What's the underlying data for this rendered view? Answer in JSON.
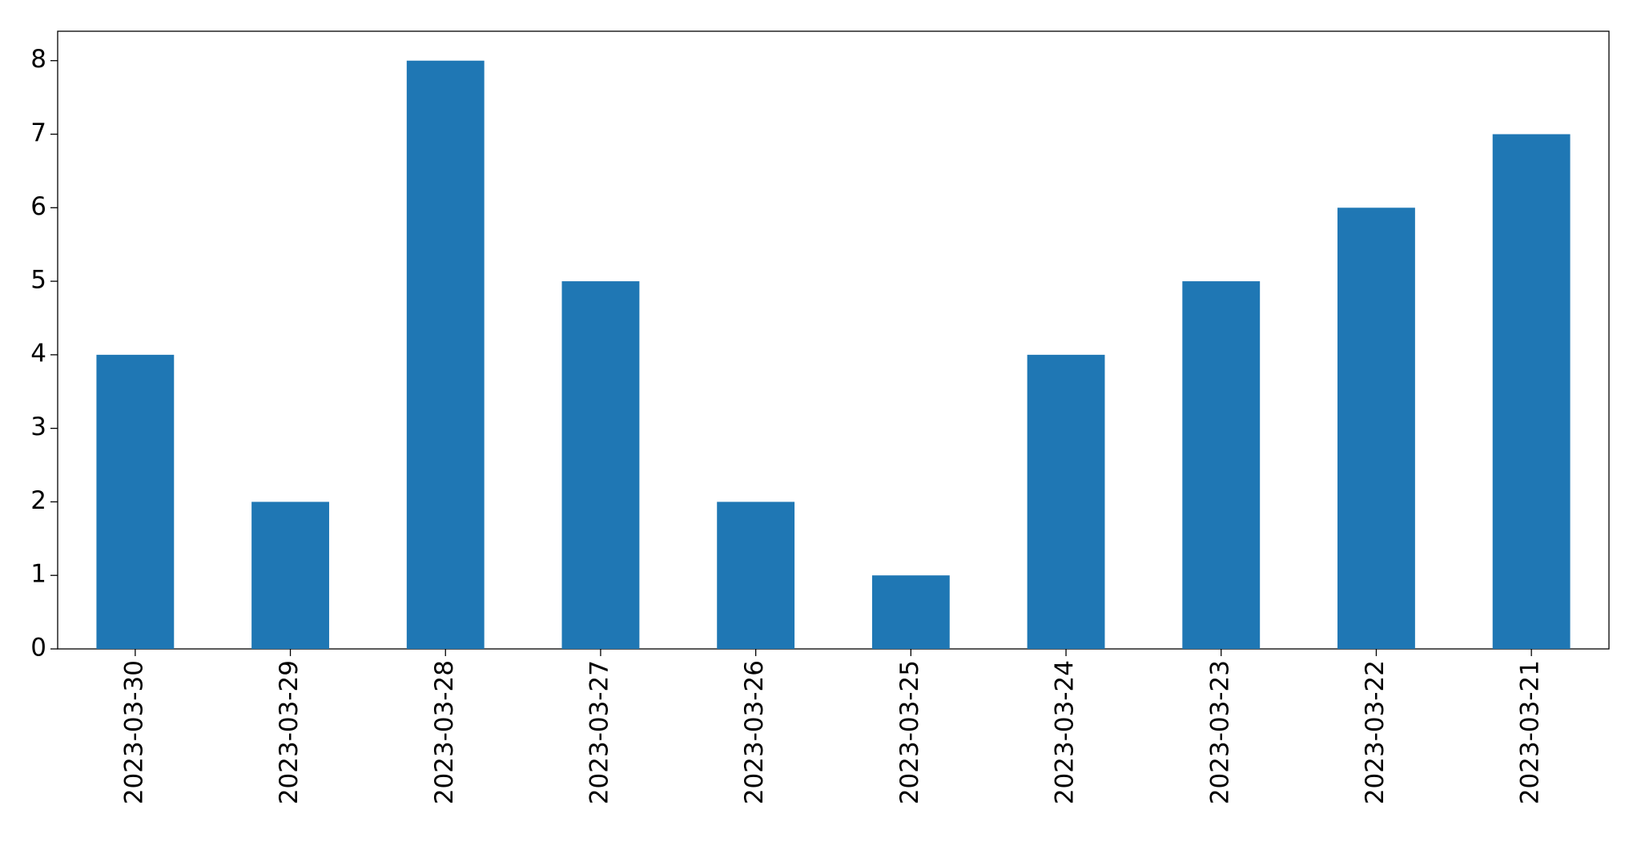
{
  "chart_data": {
    "type": "bar",
    "categories": [
      "2023-03-30",
      "2023-03-29",
      "2023-03-28",
      "2023-03-27",
      "2023-03-26",
      "2023-03-25",
      "2023-03-24",
      "2023-03-23",
      "2023-03-22",
      "2023-03-21"
    ],
    "values": [
      4,
      2,
      8,
      5,
      2,
      1,
      4,
      5,
      6,
      7
    ],
    "color": "#1f77b4",
    "ylim": [
      0,
      8.4
    ],
    "yticks": [
      0,
      1,
      2,
      3,
      4,
      5,
      6,
      7,
      8
    ],
    "grid": false
  }
}
